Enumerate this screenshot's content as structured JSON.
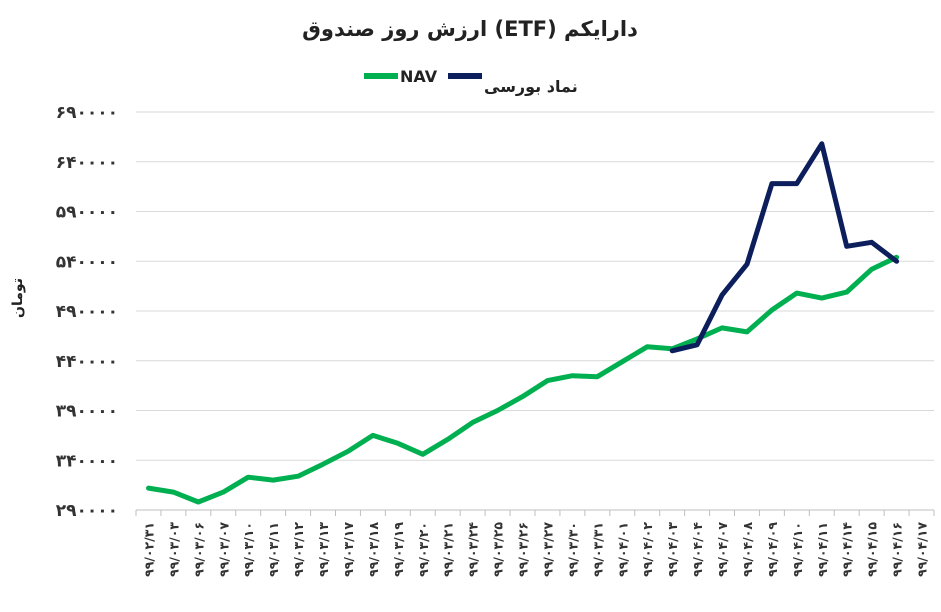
{
  "chart_data": {
    "type": "line",
    "title": "ارزش روز صندوق (ETF) دارایکم",
    "ylabel": "تومان",
    "xlabel": "",
    "ylim": [
      290000,
      690000
    ],
    "yticks": [
      "۲۹۰۰۰۰",
      "۳۴۰۰۰۰",
      "۳۹۰۰۰۰",
      "۴۴۰۰۰۰",
      "۴۹۰۰۰۰",
      "۵۴۰۰۰۰",
      "۵۹۰۰۰۰",
      "۶۴۰۰۰۰",
      "۶۹۰۰۰۰"
    ],
    "ytick_values": [
      290000,
      340000,
      390000,
      440000,
      490000,
      540000,
      590000,
      640000,
      690000
    ],
    "grid": true,
    "legend_position": "top",
    "categories": [
      "۹۹/۰۲/۳۱",
      "۹۹/۰۳/۰۳",
      "۹۹/۰۳/۰۶",
      "۹۹/۰۳/۰۷",
      "۹۹/۰۳/۱۰",
      "۹۹/۰۳/۱۱",
      "۹۹/۰۳/۱۲",
      "۹۹/۰۳/۱۳",
      "۹۹/۰۳/۱۷",
      "۹۹/۰۳/۱۸",
      "۹۹/۰۳/۱۹",
      "۹۹/۰۳/۲۰",
      "۹۹/۰۳/۲۱",
      "۹۹/۰۳/۲۴",
      "۹۹/۰۳/۲۵",
      "۹۹/۰۳/۲۶",
      "۹۹/۰۳/۲۷",
      "۹۹/۰۳/۳۰",
      "۹۹/۰۳/۳۱",
      "۹۹/۰۴/۰۱",
      "۹۹/۰۴/۰۲",
      "۹۹/۰۴/۰۳",
      "۹۹/۰۴/۰۴",
      "۹۹/۰۴/۰۷",
      "۹۹/۰۴/۰۸",
      "۹۹/۰۴/۰۹",
      "۹۹/۰۴/۱۰",
      "۹۹/۰۴/۱۱",
      "۹۹/۰۴/۱۴",
      "۹۹/۰۴/۱۵",
      "۹۹/۰۴/۱۶",
      "۹۹/۰۴/۱۷"
    ],
    "series": [
      {
        "name": "NAV",
        "color": "#00b050",
        "values": [
          312000,
          308000,
          298000,
          308000,
          323000,
          320000,
          324000,
          336000,
          349000,
          365000,
          357000,
          346000,
          361000,
          378000,
          390000,
          404000,
          420000,
          425000,
          424000,
          439000,
          454000,
          452000,
          462000,
          473000,
          469000,
          491000,
          508000,
          503000,
          509000,
          532000,
          544000,
          null
        ]
      },
      {
        "name": "نماد بورسی",
        "color": "#0c1f5c",
        "values": [
          null,
          null,
          null,
          null,
          null,
          null,
          null,
          null,
          null,
          null,
          null,
          null,
          null,
          null,
          null,
          null,
          null,
          null,
          null,
          null,
          null,
          450000,
          456000,
          506000,
          537000,
          618000,
          618000,
          658000,
          555000,
          559000,
          540000,
          null
        ]
      }
    ]
  }
}
